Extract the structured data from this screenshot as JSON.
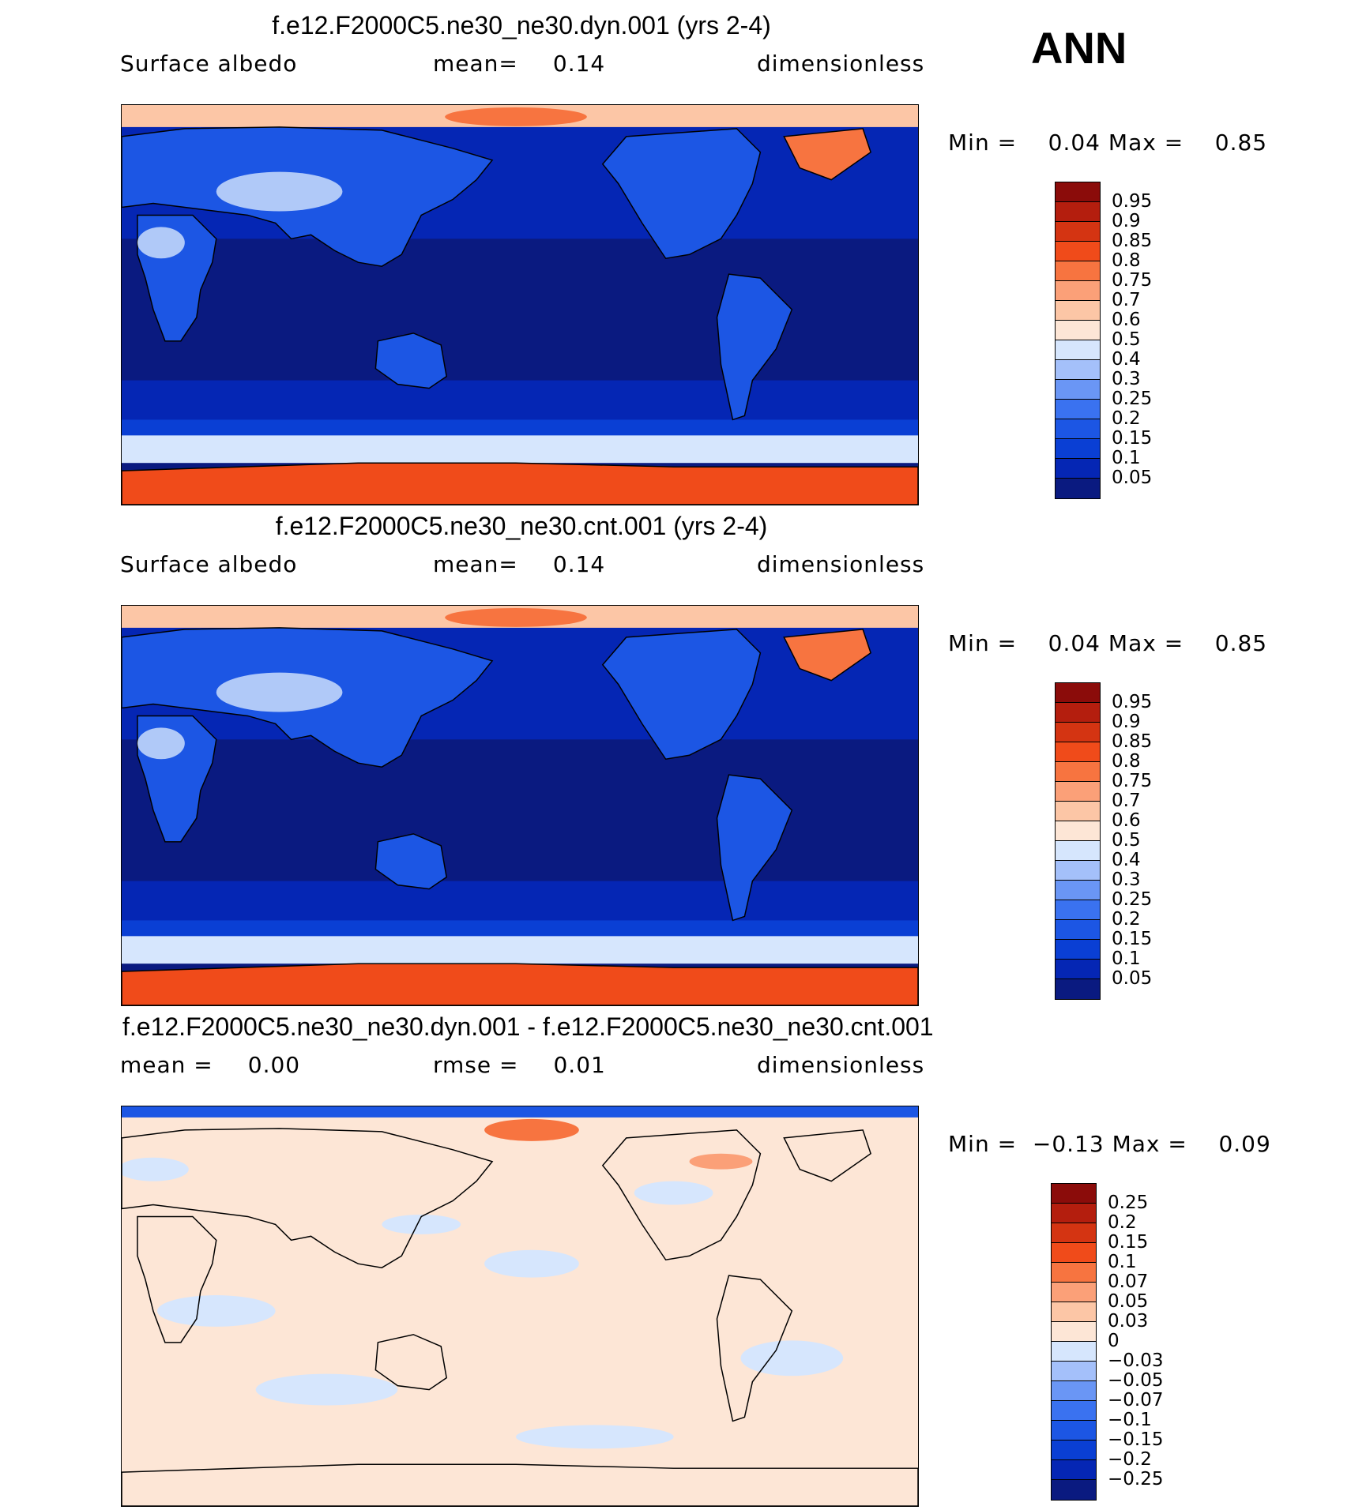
{
  "season": "ANN",
  "colors": {
    "abs_scale": [
      "#0a1a80",
      "#0526b4",
      "#0a3fd4",
      "#1c56e4",
      "#3a72f0",
      "#6a96f5",
      "#a4c0fa",
      "#d6e6fd",
      "#fde6d6",
      "#fcc6a6",
      "#fba078",
      "#f77440",
      "#f04b1a",
      "#d43412",
      "#b41e0e",
      "#8b0c0a"
    ],
    "diff_scale": [
      "#0a1a80",
      "#0526b4",
      "#0a3fd4",
      "#1c56e4",
      "#3a72f0",
      "#6a96f5",
      "#a4c0fa",
      "#d6e6fd",
      "#fde6d6",
      "#fcc6a6",
      "#fba078",
      "#f77440",
      "#f04b1a",
      "#d43412",
      "#b41e0e",
      "#8b0c0a"
    ]
  },
  "panels": [
    {
      "title": "f.e12.F2000C5.ne30_ne30.dyn.001 (yrs 2-4)",
      "left_label": "Surface albedo",
      "mid_label": "mean=",
      "mid_value": "0.14",
      "right_label": "dimensionless",
      "min_label": "Min =",
      "min_value": "0.04",
      "max_label": "Max =",
      "max_value": "0.85",
      "colorbar_labels": [
        "0.95",
        "0.9",
        "0.85",
        "0.8",
        "0.75",
        "0.7",
        "0.6",
        "0.5",
        "0.4",
        "0.3",
        "0.25",
        "0.2",
        "0.15",
        "0.1",
        "0.05"
      ]
    },
    {
      "title": "f.e12.F2000C5.ne30_ne30.cnt.001 (yrs 2-4)",
      "left_label": "Surface albedo",
      "mid_label": "mean=",
      "mid_value": "0.14",
      "right_label": "dimensionless",
      "min_label": "Min =",
      "min_value": "0.04",
      "max_label": "Max =",
      "max_value": "0.85",
      "colorbar_labels": [
        "0.95",
        "0.9",
        "0.85",
        "0.8",
        "0.75",
        "0.7",
        "0.6",
        "0.5",
        "0.4",
        "0.3",
        "0.25",
        "0.2",
        "0.15",
        "0.1",
        "0.05"
      ]
    },
    {
      "title": "f.e12.F2000C5.ne30_ne30.dyn.001 - f.e12.F2000C5.ne30_ne30.cnt.001",
      "left_label": "mean =",
      "left_value": "0.00",
      "mid_label": "rmse =",
      "mid_value": "0.01",
      "right_label": "dimensionless",
      "min_label": "Min =",
      "min_value": "−0.13",
      "max_label": "Max =",
      "max_value": "0.09",
      "colorbar_labels": [
        "0.25",
        "0.2",
        "0.15",
        "0.1",
        "0.07",
        "0.05",
        "0.03",
        "0",
        "−0.03",
        "−0.05",
        "−0.07",
        "−0.1",
        "−0.15",
        "−0.2",
        "−0.25"
      ]
    }
  ]
}
